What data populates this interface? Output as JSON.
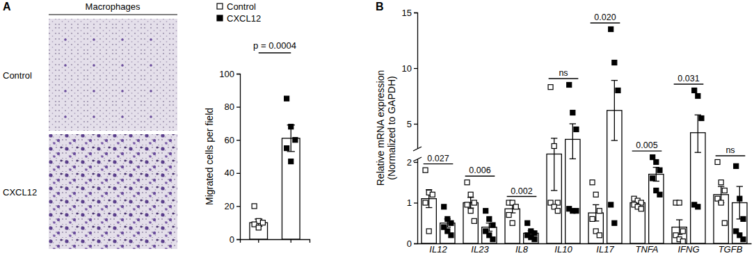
{
  "panels": [
    "A",
    "B"
  ],
  "images": {
    "title": "Macrophages",
    "rows": [
      "Control",
      "CXCL12"
    ]
  },
  "chart_data": [
    {
      "type": "bar",
      "categories": [
        null,
        null
      ],
      "ylabel": "Migrated cells per field",
      "ylim": [
        0,
        100
      ],
      "yticks": [
        0,
        20,
        40,
        60,
        80,
        100
      ],
      "legend": "top",
      "series": [
        {
          "name": "Control",
          "color": "#ffffff",
          "marker": "square",
          "values": [
            10,
            null
          ],
          "errors": [
            2.2,
            null
          ],
          "points": [
            [
              20,
              11,
              10,
              9,
              7
            ],
            null
          ]
        },
        {
          "name": "CXCL12",
          "color": "#000000",
          "marker": "square",
          "values": [
            null,
            61
          ],
          "errors": [
            null,
            8
          ],
          "points": [
            null,
            [
              85,
              68,
              60,
              55,
              47
            ]
          ]
        }
      ],
      "annotations": [
        "p = 0.0004"
      ]
    },
    {
      "type": "bar",
      "categories": [
        "IL12",
        "IL23",
        "IL8",
        "IL10",
        "IL17",
        "TNFA",
        "IFNG",
        "TGFB"
      ],
      "ylabel": "Relative mRNA expression\n(Normalized to GAPDH)",
      "ylim": [
        0,
        15
      ],
      "y_break": [
        2,
        3
      ],
      "yticks": [
        0,
        1,
        2,
        5,
        10,
        15
      ],
      "series": [
        {
          "color": "#ffffff",
          "marker": "square",
          "values": [
            1.1,
            1.0,
            0.85,
            2.5,
            0.75,
            1.0,
            0.4,
            1.2
          ],
          "errors": [
            0.22,
            0.13,
            0.1,
            1.2,
            0.2,
            0.05,
            0.18,
            0.2
          ],
          "points": [
            [
              1.8,
              1.25,
              1.2,
              1.0,
              0.3
            ],
            [
              1.5,
              1.2,
              1.0,
              0.95,
              0.8,
              0.55
            ],
            [
              1.0,
              1.0,
              0.9,
              0.7,
              0.5
            ],
            [
              8.3,
              3.0,
              1.0,
              1.0,
              0.9,
              0.8
            ],
            [
              1.5,
              1.2,
              0.8,
              0.6,
              0.3,
              0.2
            ],
            [
              1.1,
              1.05,
              1.0,
              0.95,
              0.9,
              0.85
            ],
            [
              1.0,
              1.0,
              0.3,
              0.2,
              0.1,
              0.05
            ],
            [
              2.0,
              1.5,
              1.3,
              1.1,
              1.0,
              0.5
            ]
          ]
        },
        {
          "color": "#000000",
          "marker": "square",
          "values": [
            0.5,
            0.4,
            0.25,
            3.6,
            6.2,
            1.7,
            4.2,
            1.0
          ],
          "errors": [
            0.1,
            0.1,
            0.06,
            1.4,
            2.7,
            0.17,
            1.6,
            0.4
          ],
          "points": [
            [
              0.9,
              0.6,
              0.5,
              0.4,
              0.3,
              0.2
            ],
            [
              0.8,
              0.6,
              0.45,
              0.3,
              0.2,
              0.1
            ],
            [
              0.5,
              0.3,
              0.25,
              0.2,
              0.15,
              0.1
            ],
            [
              8.5,
              6.0,
              4.5,
              0.85,
              0.8,
              0.8
            ],
            [
              13.5,
              10.5,
              8.0,
              0.95,
              0.5
            ],
            [
              2.3,
              2.0,
              1.8,
              1.6,
              1.3,
              1.2
            ],
            [
              8.0,
              7.5,
              5.5,
              0.95,
              0.9
            ],
            [
              1.9,
              1.1,
              0.6,
              0.3,
              0.2,
              0.1
            ]
          ]
        }
      ],
      "annotations": [
        "0.027",
        "0.006",
        "0.002",
        "ns",
        "0.020",
        "0.005",
        "0.031",
        "ns"
      ]
    }
  ]
}
